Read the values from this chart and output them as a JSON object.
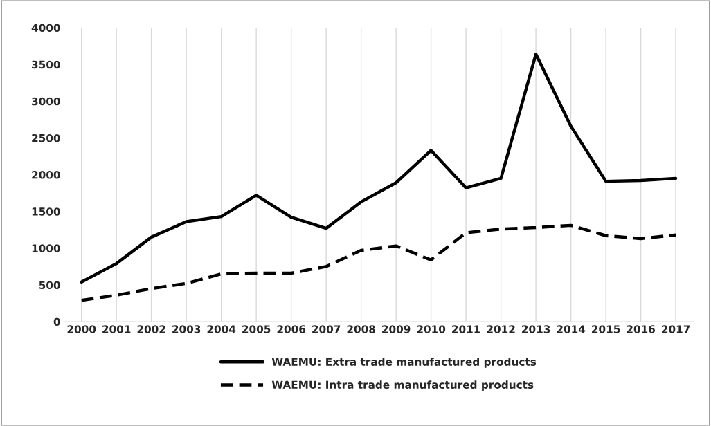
{
  "chart_data": {
    "type": "line",
    "categories": [
      "2000",
      "2001",
      "2002",
      "2003",
      "2004",
      "2005",
      "2006",
      "2007",
      "2008",
      "2009",
      "2010",
      "2011",
      "2012",
      "2013",
      "2014",
      "2015",
      "2016",
      "2017"
    ],
    "series": [
      {
        "name": "WAEMU: Extra trade manufactured products",
        "color": "#000000",
        "line_style": "solid",
        "values": [
          540,
          790,
          1150,
          1360,
          1430,
          1720,
          1420,
          1270,
          1630,
          1890,
          2330,
          1820,
          1950,
          3640,
          2660,
          1910,
          1920,
          1950
        ]
      },
      {
        "name": "WAEMU: Intra trade manufactured products",
        "color": "#000000",
        "line_style": "dashed",
        "values": [
          290,
          360,
          450,
          520,
          650,
          660,
          660,
          750,
          970,
          1030,
          840,
          1210,
          1260,
          1280,
          1310,
          1170,
          1130,
          1180
        ]
      }
    ],
    "ylim": [
      0,
      4000
    ],
    "yticks": [
      0,
      500,
      1000,
      1500,
      2000,
      2500,
      3000,
      3500,
      4000
    ],
    "grid": "x",
    "legend": "bottom",
    "marker": "none"
  }
}
